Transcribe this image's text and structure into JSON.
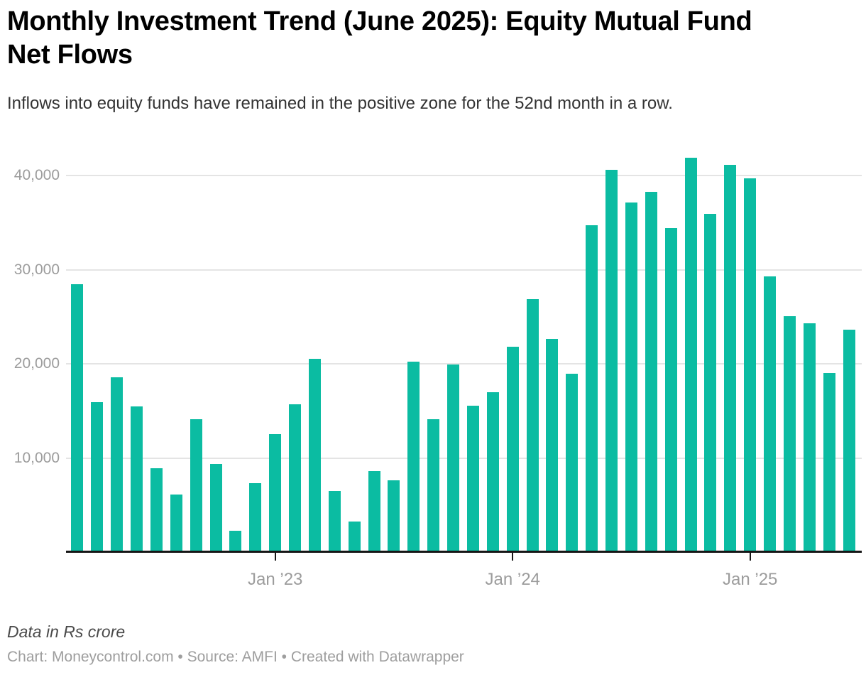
{
  "header": {
    "title": "Monthly Investment Trend (June 2025): Equity Mutual Fund\nNet Flows",
    "subtitle": "Inflows into equity funds have remained in the positive zone for the 52nd month in a row."
  },
  "chart_data": {
    "type": "bar",
    "title": "Monthly Investment Trend (June 2025): Equity Mutual Fund Net Flows",
    "unit": "Rs crore",
    "bar_color": "#0bbca2",
    "grid": true,
    "legend": "none",
    "ylim": [
      0,
      45000
    ],
    "x": [
      "Mar 2022",
      "Apr 2022",
      "May 2022",
      "Jun 2022",
      "Jul 2022",
      "Aug 2022",
      "Sep 2022",
      "Oct 2022",
      "Nov 2022",
      "Dec 2022",
      "Jan 2023",
      "Feb 2023",
      "Mar 2023",
      "Apr 2023",
      "May 2023",
      "Jun 2023",
      "Jul 2023",
      "Aug 2023",
      "Sep 2023",
      "Oct 2023",
      "Nov 2023",
      "Dec 2023",
      "Jan 2024",
      "Feb 2024",
      "Mar 2024",
      "Apr 2024",
      "May 2024",
      "Jun 2024",
      "Jul 2024",
      "Aug 2024",
      "Sep 2024",
      "Oct 2024",
      "Nov 2024",
      "Dec 2024",
      "Jan 2025",
      "Feb 2025",
      "Mar 2025",
      "Apr 2025",
      "May 2025",
      "Jun 2025"
    ],
    "values": [
      28463,
      15890,
      18529,
      15498,
      8898,
      6120,
      14100,
      9390,
      2258,
      7303,
      12546,
      15686,
      20534,
      6480,
      3240,
      8637,
      7626,
      20245,
      14091,
      19957,
      15536,
      16997,
      21780,
      26866,
      22633,
      18917,
      34697,
      40608,
      37113,
      38239,
      34419,
      41887,
      35943,
      41156,
      39688,
      29303,
      25082,
      24269,
      19013,
      23587
    ],
    "y_ticks": [
      {
        "value": 10000,
        "label": "10,000"
      },
      {
        "value": 20000,
        "label": "20,000"
      },
      {
        "value": 30000,
        "label": "30,000"
      },
      {
        "value": 40000,
        "label": "40,000"
      }
    ],
    "x_ticks": [
      {
        "index": 10,
        "label": "Jan ’23"
      },
      {
        "index": 22,
        "label": "Jan ’24"
      },
      {
        "index": 34,
        "label": "Jan ’25"
      }
    ]
  },
  "footer": {
    "note": "Data in Rs crore",
    "credits": "Chart: Moneycontrol.com • Source: AMFI • Created with Datawrapper"
  }
}
